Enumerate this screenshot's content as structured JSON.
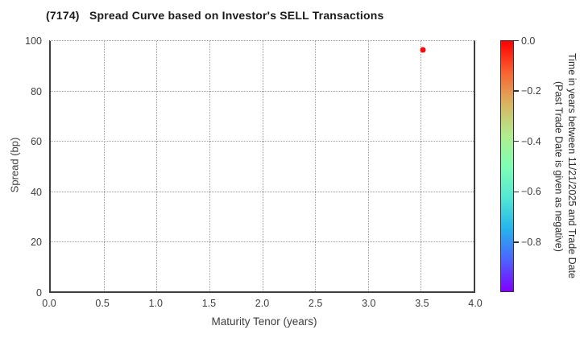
{
  "chart_data": {
    "type": "scatter",
    "title": "(7174)   Spread Curve based on Investor's SELL Transactions",
    "xlabel": "Maturity Tenor (years)",
    "ylabel": "Spread (bp)",
    "xlim": [
      0.0,
      4.0
    ],
    "ylim": [
      0,
      100
    ],
    "xticks": [
      0.0,
      0.5,
      1.0,
      1.5,
      2.0,
      2.5,
      3.0,
      3.5,
      4.0
    ],
    "xtick_labels": [
      "0.0",
      "0.5",
      "1.0",
      "1.5",
      "2.0",
      "2.5",
      "3.0",
      "3.5",
      "4.0"
    ],
    "yticks": [
      0,
      20,
      40,
      60,
      80,
      100
    ],
    "ytick_labels": [
      "0",
      "20",
      "40",
      "60",
      "80",
      "100"
    ],
    "grid": {
      "visible": true,
      "style": "dotted",
      "color": "#9a9a9a"
    },
    "legend": "none",
    "points": [
      {
        "x": 3.52,
        "y": 96.5,
        "time_years": 0.0,
        "color": "#ff0a0a"
      }
    ],
    "colorbar": {
      "label_line1": "Time in years between 11/21/2025 and Trade Date",
      "label_line2": "(Past Trade Date is given as negative)",
      "tick_labels": [
        "0.0",
        "−0.2",
        "−0.4",
        "−0.6",
        "−0.8"
      ],
      "tick_values": [
        0.0,
        -0.2,
        -0.4,
        -0.6,
        -0.8
      ],
      "vmax": 0.0,
      "vmin": -1.0,
      "colormap": "rainbow reversed (red = 0.0 at top, violet = −1.0 at bottom)",
      "gradient_stops": [
        "#ff0000",
        "#f96231",
        "#dab461",
        "#b0ec8e",
        "#80ffb4",
        "#54e7d4",
        "#25b4ec",
        "#4d62fe",
        "#8000ff"
      ]
    }
  }
}
